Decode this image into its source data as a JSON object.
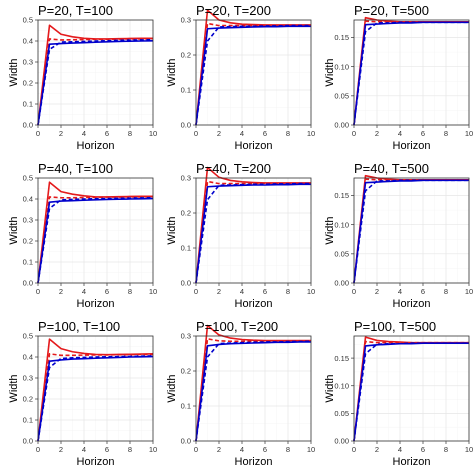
{
  "chart_data": [
    {
      "type": "line",
      "title": "P=20, T=100",
      "xlabel": "Horizon",
      "ylabel": "Width",
      "xlim": [
        0,
        10
      ],
      "ylim": [
        0,
        0.5
      ],
      "xticks": [
        0,
        2,
        4,
        6,
        8,
        10
      ],
      "yticks": [
        0,
        0.1,
        0.2,
        0.3,
        0.4,
        0.5
      ],
      "grid": true,
      "legend": "none",
      "x": [
        0,
        1,
        2,
        3,
        4,
        5,
        6,
        7,
        8,
        9,
        10
      ],
      "series": [
        {
          "color": "#e41a1c",
          "style": "solid",
          "values": [
            0,
            0.475,
            0.432,
            0.42,
            0.413,
            0.41,
            0.41,
            0.411,
            0.412,
            0.413,
            0.413
          ]
        },
        {
          "color": "#e41a1c",
          "style": "dashed",
          "values": [
            0,
            0.41,
            0.405,
            0.406,
            0.407,
            0.408,
            0.408,
            0.409,
            0.41,
            0.41,
            0.411
          ]
        },
        {
          "color": "#0000cc",
          "style": "solid",
          "values": [
            0,
            0.385,
            0.388,
            0.39,
            0.392,
            0.394,
            0.396,
            0.398,
            0.399,
            0.4,
            0.401
          ]
        },
        {
          "color": "#0000cc",
          "style": "dashed",
          "values": [
            0,
            0.36,
            0.395,
            0.396,
            0.398,
            0.4,
            0.401,
            0.403,
            0.404,
            0.405,
            0.406
          ]
        }
      ]
    },
    {
      "type": "line",
      "title": "P=20, T=200",
      "xlabel": "Horizon",
      "ylabel": "Width",
      "xlim": [
        0,
        10
      ],
      "ylim": [
        0,
        0.3
      ],
      "xticks": [
        0,
        2,
        4,
        6,
        8,
        10
      ],
      "yticks": [
        0,
        0.1,
        0.2,
        0.3
      ],
      "grid": true,
      "legend": "none",
      "x": [
        0,
        1,
        2,
        3,
        4,
        5,
        6,
        7,
        8,
        9,
        10
      ],
      "series": [
        {
          "color": "#e41a1c",
          "style": "solid",
          "values": [
            0,
            0.328,
            0.3,
            0.292,
            0.288,
            0.287,
            0.286,
            0.286,
            0.286,
            0.286,
            0.286
          ]
        },
        {
          "color": "#e41a1c",
          "style": "dashed",
          "values": [
            0,
            0.29,
            0.284,
            0.284,
            0.284,
            0.284,
            0.285,
            0.285,
            0.285,
            0.285,
            0.285
          ]
        },
        {
          "color": "#0000cc",
          "style": "solid",
          "values": [
            0,
            0.275,
            0.277,
            0.278,
            0.279,
            0.28,
            0.281,
            0.281,
            0.282,
            0.282,
            0.282
          ]
        },
        {
          "color": "#0000cc",
          "style": "dashed",
          "values": [
            0,
            0.24,
            0.28,
            0.281,
            0.282,
            0.282,
            0.283,
            0.283,
            0.284,
            0.284,
            0.284
          ]
        }
      ]
    },
    {
      "type": "line",
      "title": "P=20, T=500",
      "xlabel": "Horizon",
      "ylabel": "Width",
      "xlim": [
        0,
        10
      ],
      "ylim": [
        0,
        0.18
      ],
      "xticks": [
        0,
        2,
        4,
        6,
        8,
        10
      ],
      "yticks": [
        0,
        0.05,
        0.1,
        0.15
      ],
      "ytick_labels": [
        "0.00",
        "0.05",
        "0.10",
        "0.15"
      ],
      "grid": true,
      "legend": "none",
      "x": [
        0,
        1,
        2,
        3,
        4,
        5,
        6,
        7,
        8,
        9,
        10
      ],
      "series": [
        {
          "color": "#e41a1c",
          "style": "solid",
          "values": [
            0,
            0.184,
            0.18,
            0.178,
            0.177,
            0.177,
            0.177,
            0.177,
            0.177,
            0.177,
            0.177
          ]
        },
        {
          "color": "#e41a1c",
          "style": "dashed",
          "values": [
            0,
            0.178,
            0.177,
            0.177,
            0.177,
            0.177,
            0.177,
            0.177,
            0.177,
            0.177,
            0.177
          ]
        },
        {
          "color": "#0000cc",
          "style": "solid",
          "values": [
            0,
            0.172,
            0.173,
            0.174,
            0.175,
            0.175,
            0.176,
            0.176,
            0.176,
            0.176,
            0.176
          ]
        },
        {
          "color": "#0000cc",
          "style": "dashed",
          "values": [
            0,
            0.16,
            0.175,
            0.175,
            0.176,
            0.176,
            0.176,
            0.176,
            0.176,
            0.176,
            0.176
          ]
        }
      ]
    },
    {
      "type": "line",
      "title": "P=40, T=100",
      "xlabel": "Horizon",
      "ylabel": "Width",
      "xlim": [
        0,
        10
      ],
      "ylim": [
        0,
        0.5
      ],
      "xticks": [
        0,
        2,
        4,
        6,
        8,
        10
      ],
      "yticks": [
        0,
        0.1,
        0.2,
        0.3,
        0.4,
        0.5
      ],
      "grid": true,
      "legend": "none",
      "x": [
        0,
        1,
        2,
        3,
        4,
        5,
        6,
        7,
        8,
        9,
        10
      ],
      "series": [
        {
          "color": "#e41a1c",
          "style": "solid",
          "values": [
            0,
            0.48,
            0.435,
            0.423,
            0.415,
            0.41,
            0.41,
            0.411,
            0.412,
            0.413,
            0.413
          ]
        },
        {
          "color": "#e41a1c",
          "style": "dashed",
          "values": [
            0,
            0.41,
            0.406,
            0.406,
            0.407,
            0.408,
            0.409,
            0.409,
            0.41,
            0.41,
            0.411
          ]
        },
        {
          "color": "#0000cc",
          "style": "solid",
          "values": [
            0,
            0.385,
            0.39,
            0.392,
            0.394,
            0.396,
            0.398,
            0.399,
            0.4,
            0.401,
            0.402
          ]
        },
        {
          "color": "#0000cc",
          "style": "dashed",
          "values": [
            0,
            0.355,
            0.396,
            0.398,
            0.4,
            0.401,
            0.402,
            0.403,
            0.404,
            0.405,
            0.406
          ]
        }
      ]
    },
    {
      "type": "line",
      "title": "P=40, T=200",
      "xlabel": "Horizon",
      "ylabel": "Width",
      "xlim": [
        0,
        10
      ],
      "ylim": [
        0,
        0.3
      ],
      "xticks": [
        0,
        2,
        4,
        6,
        8,
        10
      ],
      "yticks": [
        0,
        0.1,
        0.2,
        0.3
      ],
      "grid": true,
      "legend": "none",
      "x": [
        0,
        1,
        2,
        3,
        4,
        5,
        6,
        7,
        8,
        9,
        10
      ],
      "series": [
        {
          "color": "#e41a1c",
          "style": "solid",
          "values": [
            0,
            0.33,
            0.302,
            0.293,
            0.289,
            0.287,
            0.286,
            0.286,
            0.286,
            0.286,
            0.286
          ]
        },
        {
          "color": "#e41a1c",
          "style": "dashed",
          "values": [
            0,
            0.29,
            0.284,
            0.284,
            0.284,
            0.284,
            0.285,
            0.285,
            0.285,
            0.285,
            0.285
          ]
        },
        {
          "color": "#0000cc",
          "style": "solid",
          "values": [
            0,
            0.275,
            0.277,
            0.278,
            0.279,
            0.28,
            0.28,
            0.281,
            0.281,
            0.282,
            0.282
          ]
        },
        {
          "color": "#0000cc",
          "style": "dashed",
          "values": [
            0,
            0.238,
            0.279,
            0.28,
            0.281,
            0.282,
            0.282,
            0.283,
            0.283,
            0.284,
            0.284
          ]
        }
      ]
    },
    {
      "type": "line",
      "title": "P=40, T=500",
      "xlabel": "Horizon",
      "ylabel": "Width",
      "xlim": [
        0,
        10
      ],
      "ylim": [
        0,
        0.18
      ],
      "xticks": [
        0,
        2,
        4,
        6,
        8,
        10
      ],
      "yticks": [
        0,
        0.05,
        0.1,
        0.15
      ],
      "ytick_labels": [
        "0.00",
        "0.05",
        "0.10",
        "0.15"
      ],
      "grid": true,
      "legend": "none",
      "x": [
        0,
        1,
        2,
        3,
        4,
        5,
        6,
        7,
        8,
        9,
        10
      ],
      "series": [
        {
          "color": "#e41a1c",
          "style": "solid",
          "values": [
            0,
            0.184,
            0.18,
            0.178,
            0.177,
            0.177,
            0.177,
            0.177,
            0.177,
            0.177,
            0.177
          ]
        },
        {
          "color": "#e41a1c",
          "style": "dashed",
          "values": [
            0,
            0.178,
            0.177,
            0.177,
            0.177,
            0.177,
            0.177,
            0.177,
            0.177,
            0.177,
            0.177
          ]
        },
        {
          "color": "#0000cc",
          "style": "solid",
          "values": [
            0,
            0.172,
            0.173,
            0.174,
            0.175,
            0.175,
            0.176,
            0.176,
            0.176,
            0.176,
            0.176
          ]
        },
        {
          "color": "#0000cc",
          "style": "dashed",
          "values": [
            0,
            0.158,
            0.175,
            0.175,
            0.176,
            0.176,
            0.176,
            0.176,
            0.176,
            0.176,
            0.176
          ]
        }
      ]
    },
    {
      "type": "line",
      "title": "P=100, T=100",
      "xlabel": "Horizon",
      "ylabel": "Width",
      "xlim": [
        0,
        10
      ],
      "ylim": [
        0,
        0.5
      ],
      "xticks": [
        0,
        2,
        4,
        6,
        8,
        10
      ],
      "yticks": [
        0,
        0.1,
        0.2,
        0.3,
        0.4,
        0.5
      ],
      "grid": true,
      "legend": "none",
      "x": [
        0,
        1,
        2,
        3,
        4,
        5,
        6,
        7,
        8,
        9,
        10
      ],
      "series": [
        {
          "color": "#e41a1c",
          "style": "solid",
          "values": [
            0,
            0.485,
            0.44,
            0.425,
            0.417,
            0.412,
            0.411,
            0.412,
            0.413,
            0.414,
            0.415
          ]
        },
        {
          "color": "#e41a1c",
          "style": "dashed",
          "values": [
            0,
            0.415,
            0.408,
            0.408,
            0.409,
            0.41,
            0.41,
            0.411,
            0.411,
            0.412,
            0.412
          ]
        },
        {
          "color": "#0000cc",
          "style": "solid",
          "values": [
            0,
            0.38,
            0.386,
            0.39,
            0.392,
            0.394,
            0.396,
            0.398,
            0.4,
            0.401,
            0.402
          ]
        },
        {
          "color": "#0000cc",
          "style": "dashed",
          "values": [
            0,
            0.35,
            0.393,
            0.396,
            0.398,
            0.4,
            0.401,
            0.402,
            0.403,
            0.404,
            0.405
          ]
        }
      ]
    },
    {
      "type": "line",
      "title": "P=100, T=200",
      "xlabel": "Horizon",
      "ylabel": "Width",
      "xlim": [
        0,
        10
      ],
      "ylim": [
        0,
        0.3
      ],
      "xticks": [
        0,
        2,
        4,
        6,
        8,
        10
      ],
      "yticks": [
        0,
        0.1,
        0.2,
        0.3
      ],
      "grid": true,
      "legend": "none",
      "x": [
        0,
        1,
        2,
        3,
        4,
        5,
        6,
        7,
        8,
        9,
        10
      ],
      "series": [
        {
          "color": "#e41a1c",
          "style": "solid",
          "values": [
            0,
            0.33,
            0.303,
            0.294,
            0.29,
            0.288,
            0.287,
            0.287,
            0.287,
            0.287,
            0.287
          ]
        },
        {
          "color": "#e41a1c",
          "style": "dashed",
          "values": [
            0,
            0.292,
            0.286,
            0.285,
            0.285,
            0.285,
            0.286,
            0.286,
            0.286,
            0.286,
            0.286
          ]
        },
        {
          "color": "#0000cc",
          "style": "solid",
          "values": [
            0,
            0.272,
            0.276,
            0.278,
            0.279,
            0.28,
            0.281,
            0.282,
            0.282,
            0.283,
            0.283
          ]
        },
        {
          "color": "#0000cc",
          "style": "dashed",
          "values": [
            0,
            0.24,
            0.278,
            0.28,
            0.281,
            0.282,
            0.283,
            0.283,
            0.284,
            0.284,
            0.285
          ]
        }
      ]
    },
    {
      "type": "line",
      "title": "P=100, T=500",
      "xlabel": "Horizon",
      "ylabel": "Width",
      "xlim": [
        0,
        10
      ],
      "ylim": [
        0,
        0.19
      ],
      "xticks": [
        0,
        2,
        4,
        6,
        8,
        10
      ],
      "yticks": [
        0,
        0.05,
        0.1,
        0.15
      ],
      "ytick_labels": [
        "0.00",
        "0.05",
        "0.10",
        "0.15"
      ],
      "grid": true,
      "legend": "none",
      "x": [
        0,
        1,
        2,
        3,
        4,
        5,
        6,
        7,
        8,
        9,
        10
      ],
      "series": [
        {
          "color": "#e41a1c",
          "style": "solid",
          "values": [
            0,
            0.188,
            0.182,
            0.18,
            0.179,
            0.178,
            0.178,
            0.178,
            0.178,
            0.178,
            0.178
          ]
        },
        {
          "color": "#e41a1c",
          "style": "dashed",
          "values": [
            0,
            0.18,
            0.178,
            0.178,
            0.178,
            0.178,
            0.178,
            0.178,
            0.178,
            0.178,
            0.178
          ]
        },
        {
          "color": "#0000cc",
          "style": "solid",
          "values": [
            0,
            0.172,
            0.174,
            0.175,
            0.176,
            0.176,
            0.177,
            0.177,
            0.177,
            0.177,
            0.177
          ]
        },
        {
          "color": "#0000cc",
          "style": "dashed",
          "values": [
            0,
            0.158,
            0.175,
            0.176,
            0.176,
            0.177,
            0.177,
            0.177,
            0.177,
            0.177,
            0.177
          ]
        }
      ]
    }
  ]
}
